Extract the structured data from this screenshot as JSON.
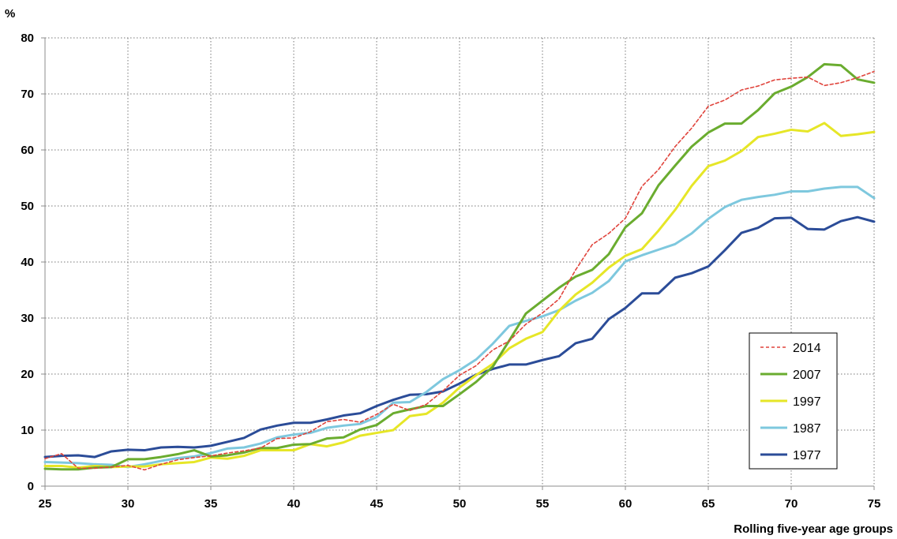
{
  "chart_data": {
    "type": "line",
    "title": "",
    "xlabel": "Rolling five-year age groups",
    "ylabel": "%",
    "xlim": [
      25,
      75
    ],
    "ylim": [
      0,
      80
    ],
    "x_ticks": [
      25,
      30,
      35,
      40,
      45,
      50,
      55,
      60,
      65,
      70,
      75
    ],
    "y_ticks": [
      0,
      10,
      20,
      30,
      40,
      50,
      60,
      70,
      80
    ],
    "grid": true,
    "legend_position": "bottom-right",
    "x": [
      25,
      26,
      27,
      28,
      29,
      30,
      31,
      32,
      33,
      34,
      35,
      36,
      37,
      38,
      39,
      40,
      41,
      42,
      43,
      44,
      45,
      46,
      47,
      48,
      49,
      50,
      51,
      52,
      53,
      54,
      55,
      56,
      57,
      58,
      59,
      60,
      61,
      62,
      63,
      64,
      65,
      66,
      67,
      68,
      69,
      70,
      71,
      72,
      73,
      74,
      75
    ],
    "series": [
      {
        "name": "2014",
        "color": "#e0443c",
        "dashed": true,
        "values": [
          4.9,
          5.8,
          3.2,
          3.2,
          3.4,
          3.7,
          2.9,
          3.9,
          4.7,
          5.1,
          5.4,
          5.9,
          6.3,
          6.8,
          8.5,
          8.6,
          9.7,
          11.5,
          11.9,
          11.4,
          12.8,
          14.6,
          13.5,
          14.6,
          17.0,
          19.8,
          21.5,
          24.3,
          25.9,
          28.9,
          30.9,
          33.4,
          38.6,
          43.1,
          45.1,
          47.8,
          53.5,
          56.5,
          60.6,
          63.9,
          67.8,
          68.9,
          70.7,
          71.4,
          72.5,
          72.8,
          73.0,
          71.5,
          72.0,
          72.9,
          74.0
        ]
      },
      {
        "name": "2007",
        "color": "#6aac2f",
        "dashed": false,
        "values": [
          3.1,
          3.0,
          3.0,
          3.3,
          3.4,
          4.8,
          4.8,
          5.2,
          5.7,
          6.4,
          5.3,
          5.5,
          6.0,
          6.8,
          6.8,
          7.4,
          7.5,
          8.5,
          8.7,
          10.1,
          10.9,
          13.0,
          13.7,
          14.3,
          14.3,
          16.4,
          18.6,
          21.3,
          26.0,
          30.8,
          33.1,
          35.4,
          37.4,
          38.6,
          41.4,
          46.2,
          48.7,
          53.7,
          57.2,
          60.6,
          63.1,
          64.7,
          64.7,
          67.1,
          70.1,
          71.3,
          73.0,
          75.3,
          75.1,
          72.6,
          72.0
        ]
      },
      {
        "name": "1997",
        "color": "#e6e627",
        "dashed": false,
        "values": [
          3.6,
          3.6,
          3.3,
          3.6,
          3.4,
          3.5,
          3.5,
          3.9,
          4.1,
          4.3,
          5.1,
          4.9,
          5.4,
          6.4,
          6.4,
          6.4,
          7.5,
          7.1,
          7.8,
          9.0,
          9.5,
          10.0,
          12.5,
          12.9,
          14.9,
          17.6,
          19.8,
          21.8,
          24.6,
          26.3,
          27.5,
          31.3,
          34.2,
          36.3,
          39.0,
          41.1,
          42.3,
          45.6,
          49.3,
          53.6,
          57.1,
          58.1,
          59.8,
          62.3,
          62.9,
          63.6,
          63.3,
          64.8,
          62.5,
          62.8,
          63.2
        ]
      },
      {
        "name": "1987",
        "color": "#7ec8de",
        "dashed": false,
        "values": [
          4.3,
          4.2,
          4.1,
          3.9,
          3.8,
          3.4,
          3.9,
          4.5,
          5.0,
          5.3,
          5.9,
          6.7,
          6.9,
          7.6,
          8.7,
          9.2,
          9.5,
          10.4,
          10.8,
          11.1,
          12.3,
          14.9,
          15.0,
          16.8,
          19.1,
          20.7,
          22.6,
          25.4,
          28.6,
          29.5,
          30.3,
          31.4,
          33.1,
          34.5,
          36.6,
          40.1,
          41.2,
          42.2,
          43.2,
          45.1,
          47.7,
          49.8,
          51.1,
          51.6,
          52.0,
          52.6,
          52.6,
          53.1,
          53.4,
          53.4,
          51.4
        ]
      },
      {
        "name": "1977",
        "color": "#2b4c98",
        "dashed": false,
        "values": [
          5.2,
          5.4,
          5.5,
          5.2,
          6.2,
          6.5,
          6.4,
          6.9,
          7.0,
          6.9,
          7.2,
          7.9,
          8.6,
          10.1,
          10.8,
          11.3,
          11.3,
          11.9,
          12.6,
          13.0,
          14.3,
          15.4,
          16.3,
          16.4,
          16.9,
          18.3,
          19.9,
          20.9,
          21.7,
          21.7,
          22.5,
          23.2,
          25.5,
          26.3,
          29.8,
          31.8,
          34.4,
          34.4,
          37.2,
          38.0,
          39.2,
          42.1,
          45.2,
          46.1,
          47.8,
          47.9,
          45.9,
          45.8,
          47.3,
          48.0,
          47.2
        ]
      }
    ]
  }
}
